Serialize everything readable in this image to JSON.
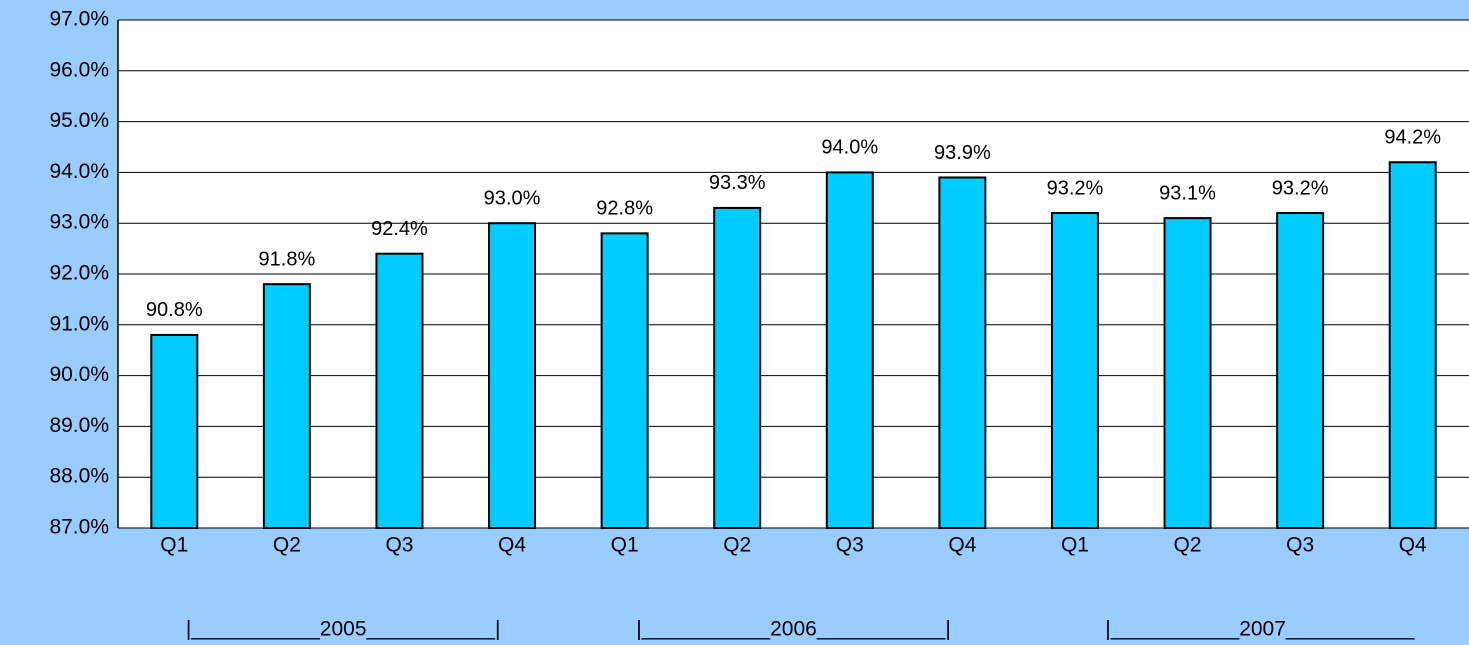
{
  "chart_data": {
    "type": "bar",
    "categories": [
      "Q1",
      "Q2",
      "Q3",
      "Q4",
      "Q1",
      "Q2",
      "Q3",
      "Q4",
      "Q1",
      "Q2",
      "Q3",
      "Q4"
    ],
    "group_labels": [
      "|___________2005___________|",
      "|___________2006___________|",
      "|___________2007___________"
    ],
    "values": [
      90.8,
      91.8,
      92.4,
      93.0,
      92.8,
      93.3,
      94.0,
      93.9,
      93.2,
      93.1,
      93.2,
      94.2
    ],
    "value_labels": [
      "90.8%",
      "91.8%",
      "92.4%",
      "93.0%",
      "92.8%",
      "93.3%",
      "94.0%",
      "93.9%",
      "93.2%",
      "93.1%",
      "93.2%",
      "94.2%"
    ],
    "color": "#00ccff",
    "ylim": [
      87,
      97
    ],
    "yticks": [
      {
        "value": 87,
        "label": "87.0%"
      },
      {
        "value": 88,
        "label": "88.0%"
      },
      {
        "value": 89,
        "label": "89.0%"
      },
      {
        "value": 90,
        "label": "90.0%"
      },
      {
        "value": 91,
        "label": "91.0%"
      },
      {
        "value": 92,
        "label": "92.0%"
      },
      {
        "value": 93,
        "label": "93.0%"
      },
      {
        "value": 94,
        "label": "94.0%"
      },
      {
        "value": 95,
        "label": "95.0%"
      },
      {
        "value": 96,
        "label": "96.0%"
      },
      {
        "value": 97,
        "label": "97.0%"
      }
    ],
    "grid": true
  }
}
